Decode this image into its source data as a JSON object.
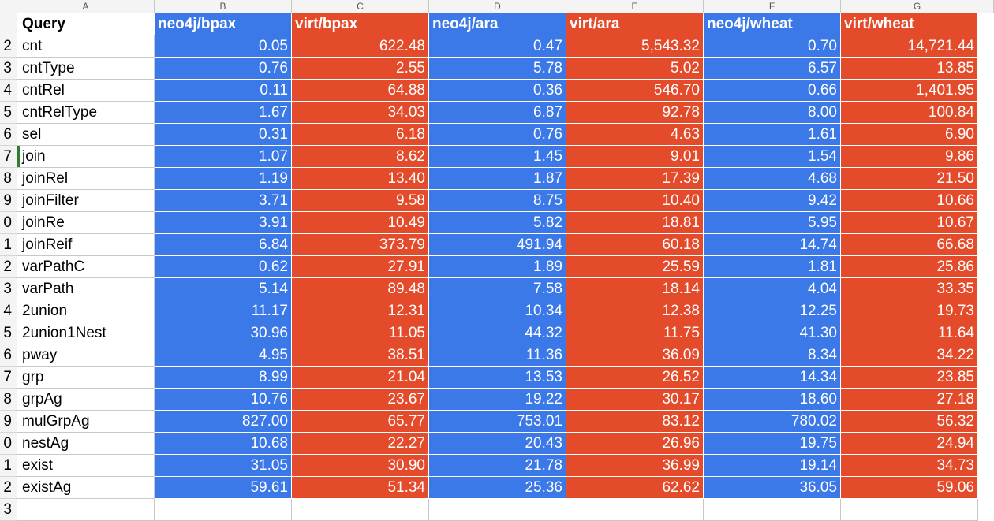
{
  "colors": {
    "blue": "#3b78e8",
    "red": "#e44b2b"
  },
  "column_letters": [
    "",
    "A",
    "B",
    "C",
    "D",
    "E",
    "F",
    "G"
  ],
  "headers": [
    "Query",
    "neo4j/bpax",
    "virt/bpax",
    "neo4j/ara",
    "virt/ara",
    "neo4j/wheat",
    "virt/wheat"
  ],
  "row_numbers": [
    "",
    "2",
    "3",
    "4",
    "5",
    "6",
    "7",
    "8",
    "9",
    "0",
    "1",
    "2",
    "3",
    "4",
    "5",
    "6",
    "7",
    "8",
    "9",
    "0",
    "1",
    "2",
    "3"
  ],
  "rows": [
    [
      "cnt",
      "0.05",
      "622.48",
      "0.47",
      "5,543.32",
      "0.70",
      "14,721.44"
    ],
    [
      "cntType",
      "0.76",
      "2.55",
      "5.78",
      "5.02",
      "6.57",
      "13.85"
    ],
    [
      "cntRel",
      "0.11",
      "64.88",
      "0.36",
      "546.70",
      "0.66",
      "1,401.95"
    ],
    [
      "cntRelType",
      "1.67",
      "34.03",
      "6.87",
      "92.78",
      "8.00",
      "100.84"
    ],
    [
      "sel",
      "0.31",
      "6.18",
      "0.76",
      "4.63",
      "1.61",
      "6.90"
    ],
    [
      "join",
      "1.07",
      "8.62",
      "1.45",
      "9.01",
      "1.54",
      "9.86"
    ],
    [
      "joinRel",
      "1.19",
      "13.40",
      "1.87",
      "17.39",
      "4.68",
      "21.50"
    ],
    [
      "joinFilter",
      "3.71",
      "9.58",
      "8.75",
      "10.40",
      "9.42",
      "10.66"
    ],
    [
      "joinRe",
      "3.91",
      "10.49",
      "5.82",
      "18.81",
      "5.95",
      "10.67"
    ],
    [
      "joinReif",
      "6.84",
      "373.79",
      "491.94",
      "60.18",
      "14.74",
      "66.68"
    ],
    [
      "varPathC",
      "0.62",
      "27.91",
      "1.89",
      "25.59",
      "1.81",
      "25.86"
    ],
    [
      "varPath",
      "5.14",
      "89.48",
      "7.58",
      "18.14",
      "4.04",
      "33.35"
    ],
    [
      "2union",
      "11.17",
      "12.31",
      "10.34",
      "12.38",
      "12.25",
      "19.73"
    ],
    [
      "2union1Nest",
      "30.96",
      "11.05",
      "44.32",
      "11.75",
      "41.30",
      "11.64"
    ],
    [
      "pway",
      "4.95",
      "38.51",
      "11.36",
      "36.09",
      "8.34",
      "34.22"
    ],
    [
      "grp",
      "8.99",
      "21.04",
      "13.53",
      "26.52",
      "14.34",
      "23.85"
    ],
    [
      "grpAg",
      "10.76",
      "23.67",
      "19.22",
      "30.17",
      "18.60",
      "27.18"
    ],
    [
      "mulGrpAg",
      "827.00",
      "65.77",
      "753.01",
      "83.12",
      "780.02",
      "56.32"
    ],
    [
      "nestAg",
      "10.68",
      "22.27",
      "20.43",
      "26.96",
      "19.75",
      "24.94"
    ],
    [
      "exist",
      "31.05",
      "30.90",
      "21.78",
      "36.99",
      "19.14",
      "34.73"
    ],
    [
      "existAg",
      "59.61",
      "51.34",
      "25.36",
      "62.62",
      "36.05",
      "59.06"
    ]
  ]
}
